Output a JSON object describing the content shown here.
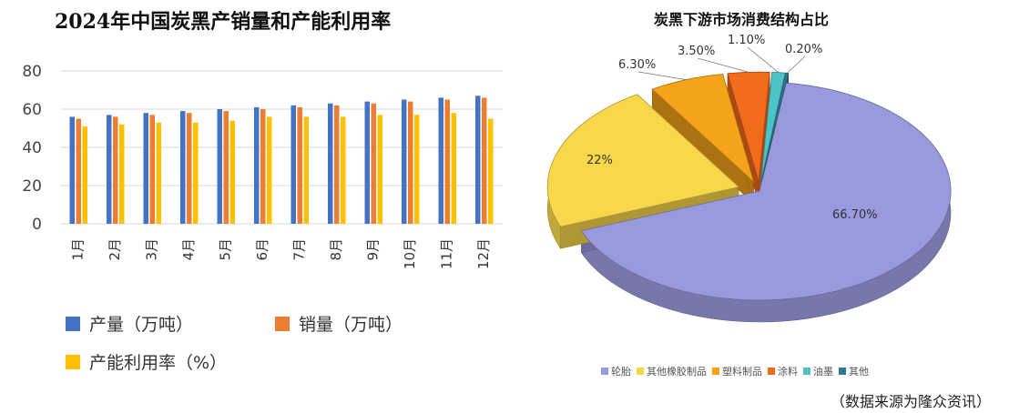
{
  "left": {
    "title": "2024年中国炭黑产销量和产能利用率",
    "legend": [
      "产量（万吨）",
      "销量（万吨）",
      "产能利用率（%）"
    ]
  },
  "right": {
    "title": "炭黑下游市场消费结构占比",
    "legend": [
      "轮胎",
      "其他橡胶制品",
      "塑料制品",
      "涂料",
      "油墨",
      "其他"
    ],
    "source": "（数据来源为隆众资讯）"
  },
  "colors": {
    "production": "#4472C4",
    "sales": "#ED7D31",
    "utilization": "#FFC000",
    "tire": "#9999DD",
    "rubber": "#F8D84A",
    "plastic": "#F5A31A",
    "coating": "#F26A1B",
    "ink": "#4DC3C8",
    "other": "#2E7D8C"
  },
  "chart_data": [
    {
      "type": "bar",
      "title": "2024年中国炭黑产销量和产能利用率",
      "categories": [
        "1月",
        "2月",
        "3月",
        "4月",
        "5月",
        "6月",
        "7月",
        "8月",
        "9月",
        "10月",
        "11月",
        "12月"
      ],
      "series": [
        {
          "name": "产量（万吨）",
          "values": [
            56,
            57,
            58,
            59,
            60,
            61,
            62,
            63,
            64,
            65,
            66,
            67
          ]
        },
        {
          "name": "销量（万吨）",
          "values": [
            55,
            56,
            57,
            58,
            59,
            60,
            61,
            62,
            63,
            64,
            65,
            66
          ]
        },
        {
          "name": "产能利用率（%）",
          "values": [
            51,
            52,
            53,
            53,
            54,
            56,
            56,
            56,
            57,
            57,
            58,
            55
          ]
        }
      ],
      "yticks": [
        0,
        20,
        40,
        60,
        80
      ],
      "ylim": [
        0,
        80
      ],
      "grid": true,
      "legend_position": "bottom"
    },
    {
      "type": "pie",
      "title": "炭黑下游市场消费结构占比",
      "labels": [
        "轮胎",
        "其他橡胶制品",
        "塑料制品",
        "涂料",
        "油墨",
        "其他"
      ],
      "values": [
        66.7,
        22,
        6.3,
        3.5,
        1.1,
        0.2
      ],
      "data_labels": [
        "66.70%",
        "22%",
        "6.30%",
        "3.50%",
        "1.10%",
        "0.20%"
      ],
      "legend_position": "bottom"
    }
  ]
}
